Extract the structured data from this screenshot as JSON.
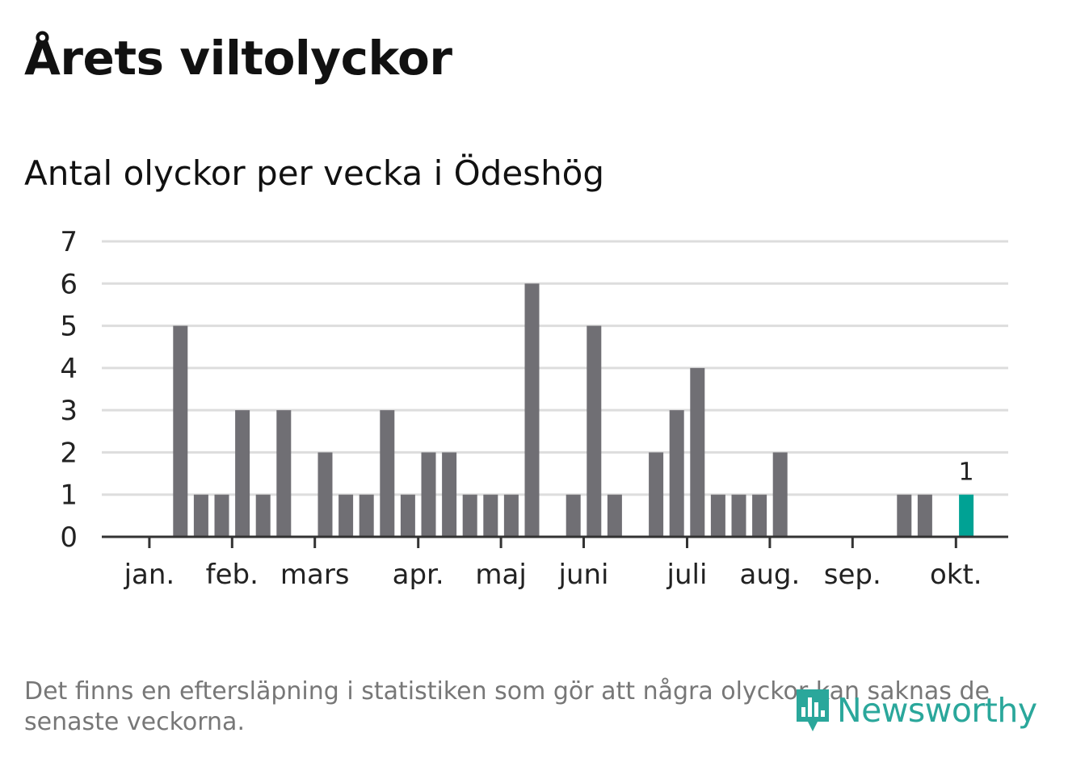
{
  "title": "Årets viltolyckor",
  "subtitle": "Antal olyckor per vecka i Ödeshög",
  "footnote": "Det finns en eftersläpning i statistiken som gör att några olyckor kan saknas de senaste veckorna.",
  "logo_text": "Newsworthy",
  "colors": {
    "bar": "#706f74",
    "highlight": "#00a294",
    "grid": "#dddddd",
    "axis": "#333333",
    "logo": "#2aa79b"
  },
  "chart_data": {
    "type": "bar",
    "title": "Antal olyckor per vecka i Ödeshög",
    "xlabel": "",
    "ylabel": "",
    "ylim": [
      0,
      7
    ],
    "yticks": [
      "0",
      "1",
      "2",
      "3",
      "4",
      "5",
      "6",
      "7"
    ],
    "weeks": [
      1,
      2,
      3,
      4,
      5,
      6,
      7,
      8,
      9,
      10,
      11,
      12,
      13,
      14,
      15,
      16,
      17,
      18,
      19,
      20,
      21,
      22,
      23,
      24,
      25,
      26,
      27,
      28,
      29,
      30,
      31,
      32,
      33,
      34,
      35,
      36,
      37,
      38,
      39,
      40,
      41,
      42,
      43
    ],
    "values": [
      0,
      0,
      0,
      5,
      1,
      1,
      3,
      1,
      3,
      0,
      2,
      1,
      1,
      3,
      1,
      2,
      2,
      1,
      1,
      1,
      6,
      0,
      1,
      5,
      1,
      0,
      2,
      3,
      4,
      1,
      1,
      1,
      2,
      0,
      0,
      0,
      0,
      0,
      1,
      1,
      0,
      1,
      null
    ],
    "highlight_index": 41,
    "highlight_label": "1",
    "month_labels": [
      {
        "label": "jan.",
        "week": 2.5
      },
      {
        "label": "feb.",
        "week": 6.5
      },
      {
        "label": "mars",
        "week": 10.5
      },
      {
        "label": "apr.",
        "week": 15.5
      },
      {
        "label": "maj",
        "week": 19.5
      },
      {
        "label": "juni",
        "week": 23.5
      },
      {
        "label": "juli",
        "week": 28.5
      },
      {
        "label": "aug.",
        "week": 32.5
      },
      {
        "label": "sep.",
        "week": 36.5
      },
      {
        "label": "okt.",
        "week": 41.5
      }
    ]
  }
}
